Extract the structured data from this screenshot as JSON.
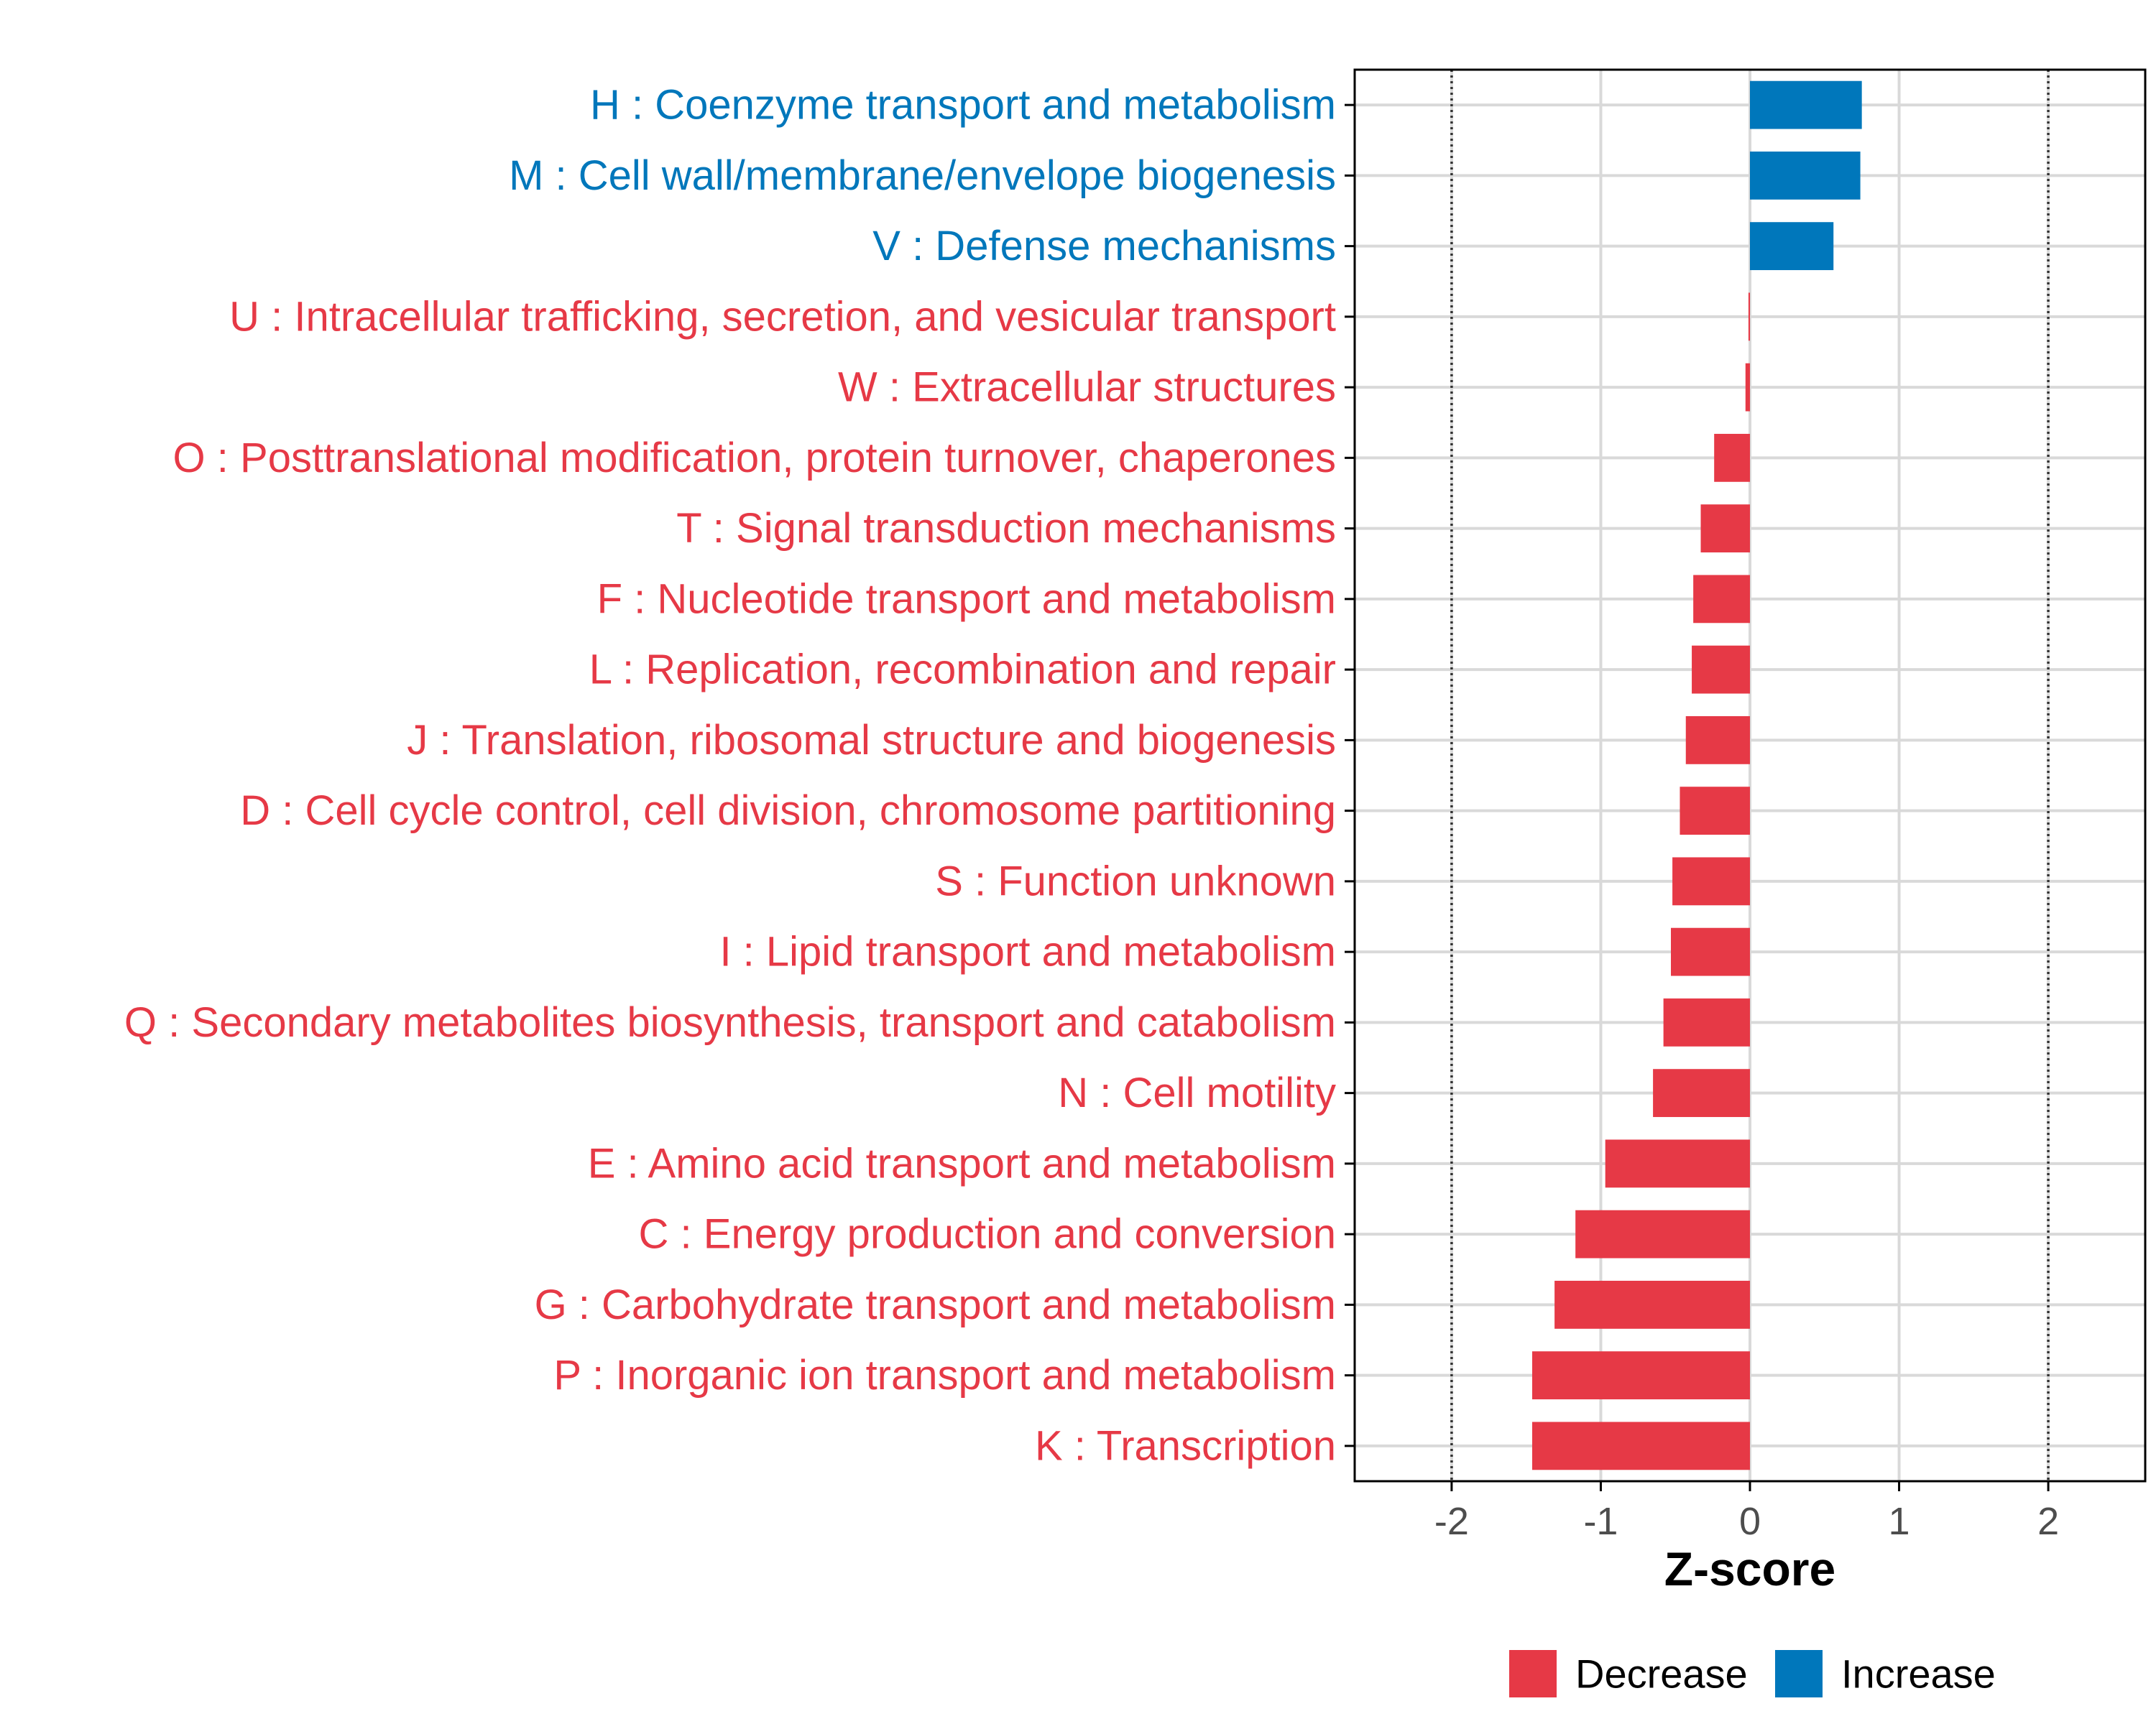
{
  "chart_data": {
    "type": "bar",
    "orientation": "horizontal",
    "title": "",
    "xlabel": "Z-score",
    "ylabel": "",
    "xlim": [
      -2.65,
      2.65
    ],
    "x_ticks": [
      -2,
      -1,
      0,
      1,
      2
    ],
    "x_tick_labels": [
      "-2",
      "-1",
      "0",
      "1",
      "2"
    ],
    "reference_lines": [
      -2,
      2
    ],
    "grid": true,
    "colors": {
      "Increase": "#0077bb",
      "Decrease": "#e63946",
      "grid": "#d9d9d9",
      "frame": "#000000",
      "refline": "#333333"
    },
    "legend": {
      "position": "bottom",
      "entries": [
        {
          "name": "Decrease",
          "color": "#e63946"
        },
        {
          "name": "Increase",
          "color": "#0077bb"
        }
      ]
    },
    "bars": [
      {
        "label": "H : Coenzyme transport and metabolism",
        "value": 0.75,
        "group": "Increase"
      },
      {
        "label": "M : Cell wall/membrane/envelope biogenesis",
        "value": 0.74,
        "group": "Increase"
      },
      {
        "label": "V : Defense mechanisms",
        "value": 0.56,
        "group": "Increase"
      },
      {
        "label": "U : Intracellular trafficking, secretion, and vesicular transport",
        "value": -0.01,
        "group": "Decrease"
      },
      {
        "label": "W : Extracellular structures",
        "value": -0.03,
        "group": "Decrease"
      },
      {
        "label": "O : Posttranslational modification, protein turnover, chaperones",
        "value": -0.24,
        "group": "Decrease"
      },
      {
        "label": "T : Signal transduction mechanisms",
        "value": -0.33,
        "group": "Decrease"
      },
      {
        "label": "F : Nucleotide transport and metabolism",
        "value": -0.38,
        "group": "Decrease"
      },
      {
        "label": "L : Replication, recombination and repair",
        "value": -0.39,
        "group": "Decrease"
      },
      {
        "label": "J : Translation, ribosomal structure and biogenesis",
        "value": -0.43,
        "group": "Decrease"
      },
      {
        "label": "D : Cell cycle control, cell division, chromosome partitioning",
        "value": -0.47,
        "group": "Decrease"
      },
      {
        "label": "S : Function unknown",
        "value": -0.52,
        "group": "Decrease"
      },
      {
        "label": "I : Lipid transport and metabolism",
        "value": -0.53,
        "group": "Decrease"
      },
      {
        "label": "Q : Secondary metabolites biosynthesis, transport and catabolism",
        "value": -0.58,
        "group": "Decrease"
      },
      {
        "label": "N : Cell motility",
        "value": -0.65,
        "group": "Decrease"
      },
      {
        "label": "E : Amino acid transport and metabolism",
        "value": -0.97,
        "group": "Decrease"
      },
      {
        "label": "C : Energy production and conversion",
        "value": -1.17,
        "group": "Decrease"
      },
      {
        "label": "G : Carbohydrate transport and metabolism",
        "value": -1.31,
        "group": "Decrease"
      },
      {
        "label": "P : Inorganic ion transport and metabolism",
        "value": -1.46,
        "group": "Decrease"
      },
      {
        "label": "K : Transcription",
        "value": -1.46,
        "group": "Decrease"
      }
    ]
  }
}
